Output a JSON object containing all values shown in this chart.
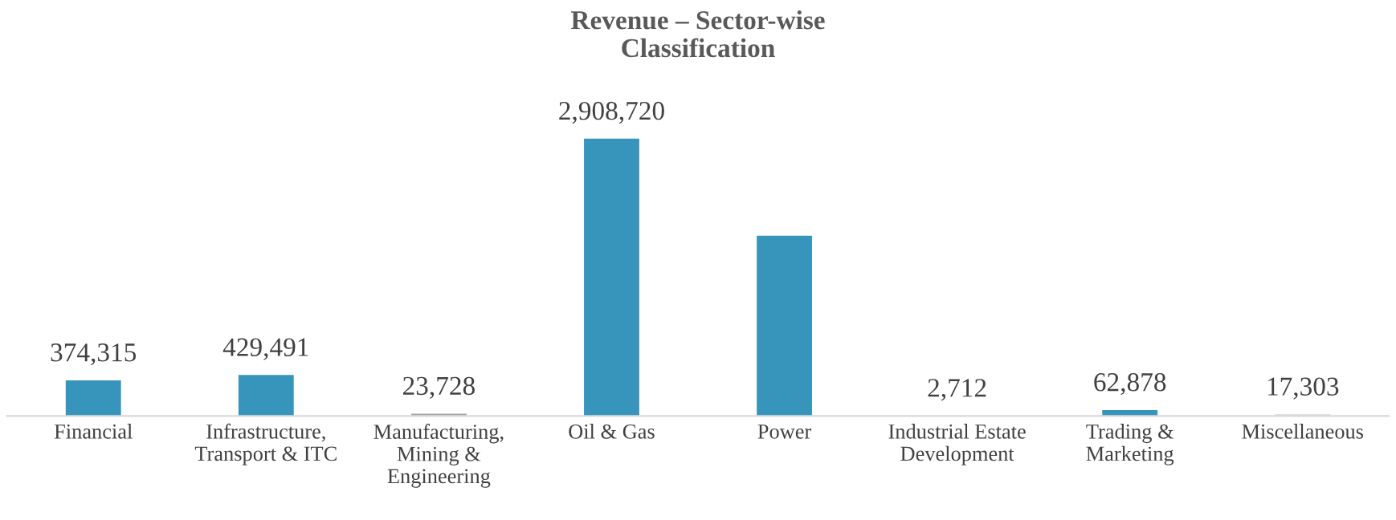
{
  "chart_data": {
    "type": "bar",
    "title": "Revenue – Sector-wise\nClassification",
    "categories": [
      "Financial",
      "Infrastructure,\nTransport & ITC",
      "Manufacturing,\nMining &\nEngineering",
      "Oil & Gas",
      "Power",
      "Industrial Estate\nDevelopment",
      "Trading &\nMarketing",
      "Miscellaneous"
    ],
    "values": [
      374315,
      429491,
      23728,
      2908720,
      1890000,
      2712,
      62878,
      17303
    ],
    "value_labels": [
      "374,315",
      "429,491",
      "23,728",
      "2,908,720",
      null,
      "2,712",
      "62,878",
      "17,303"
    ],
    "colors": [
      "#3795bc",
      "#3795bc",
      "#a6a6a6",
      "#3795bc",
      "#3795bc",
      "#3795bc",
      "#3795bc",
      "#d9d9d9"
    ],
    "grid": false,
    "legend": false
  }
}
